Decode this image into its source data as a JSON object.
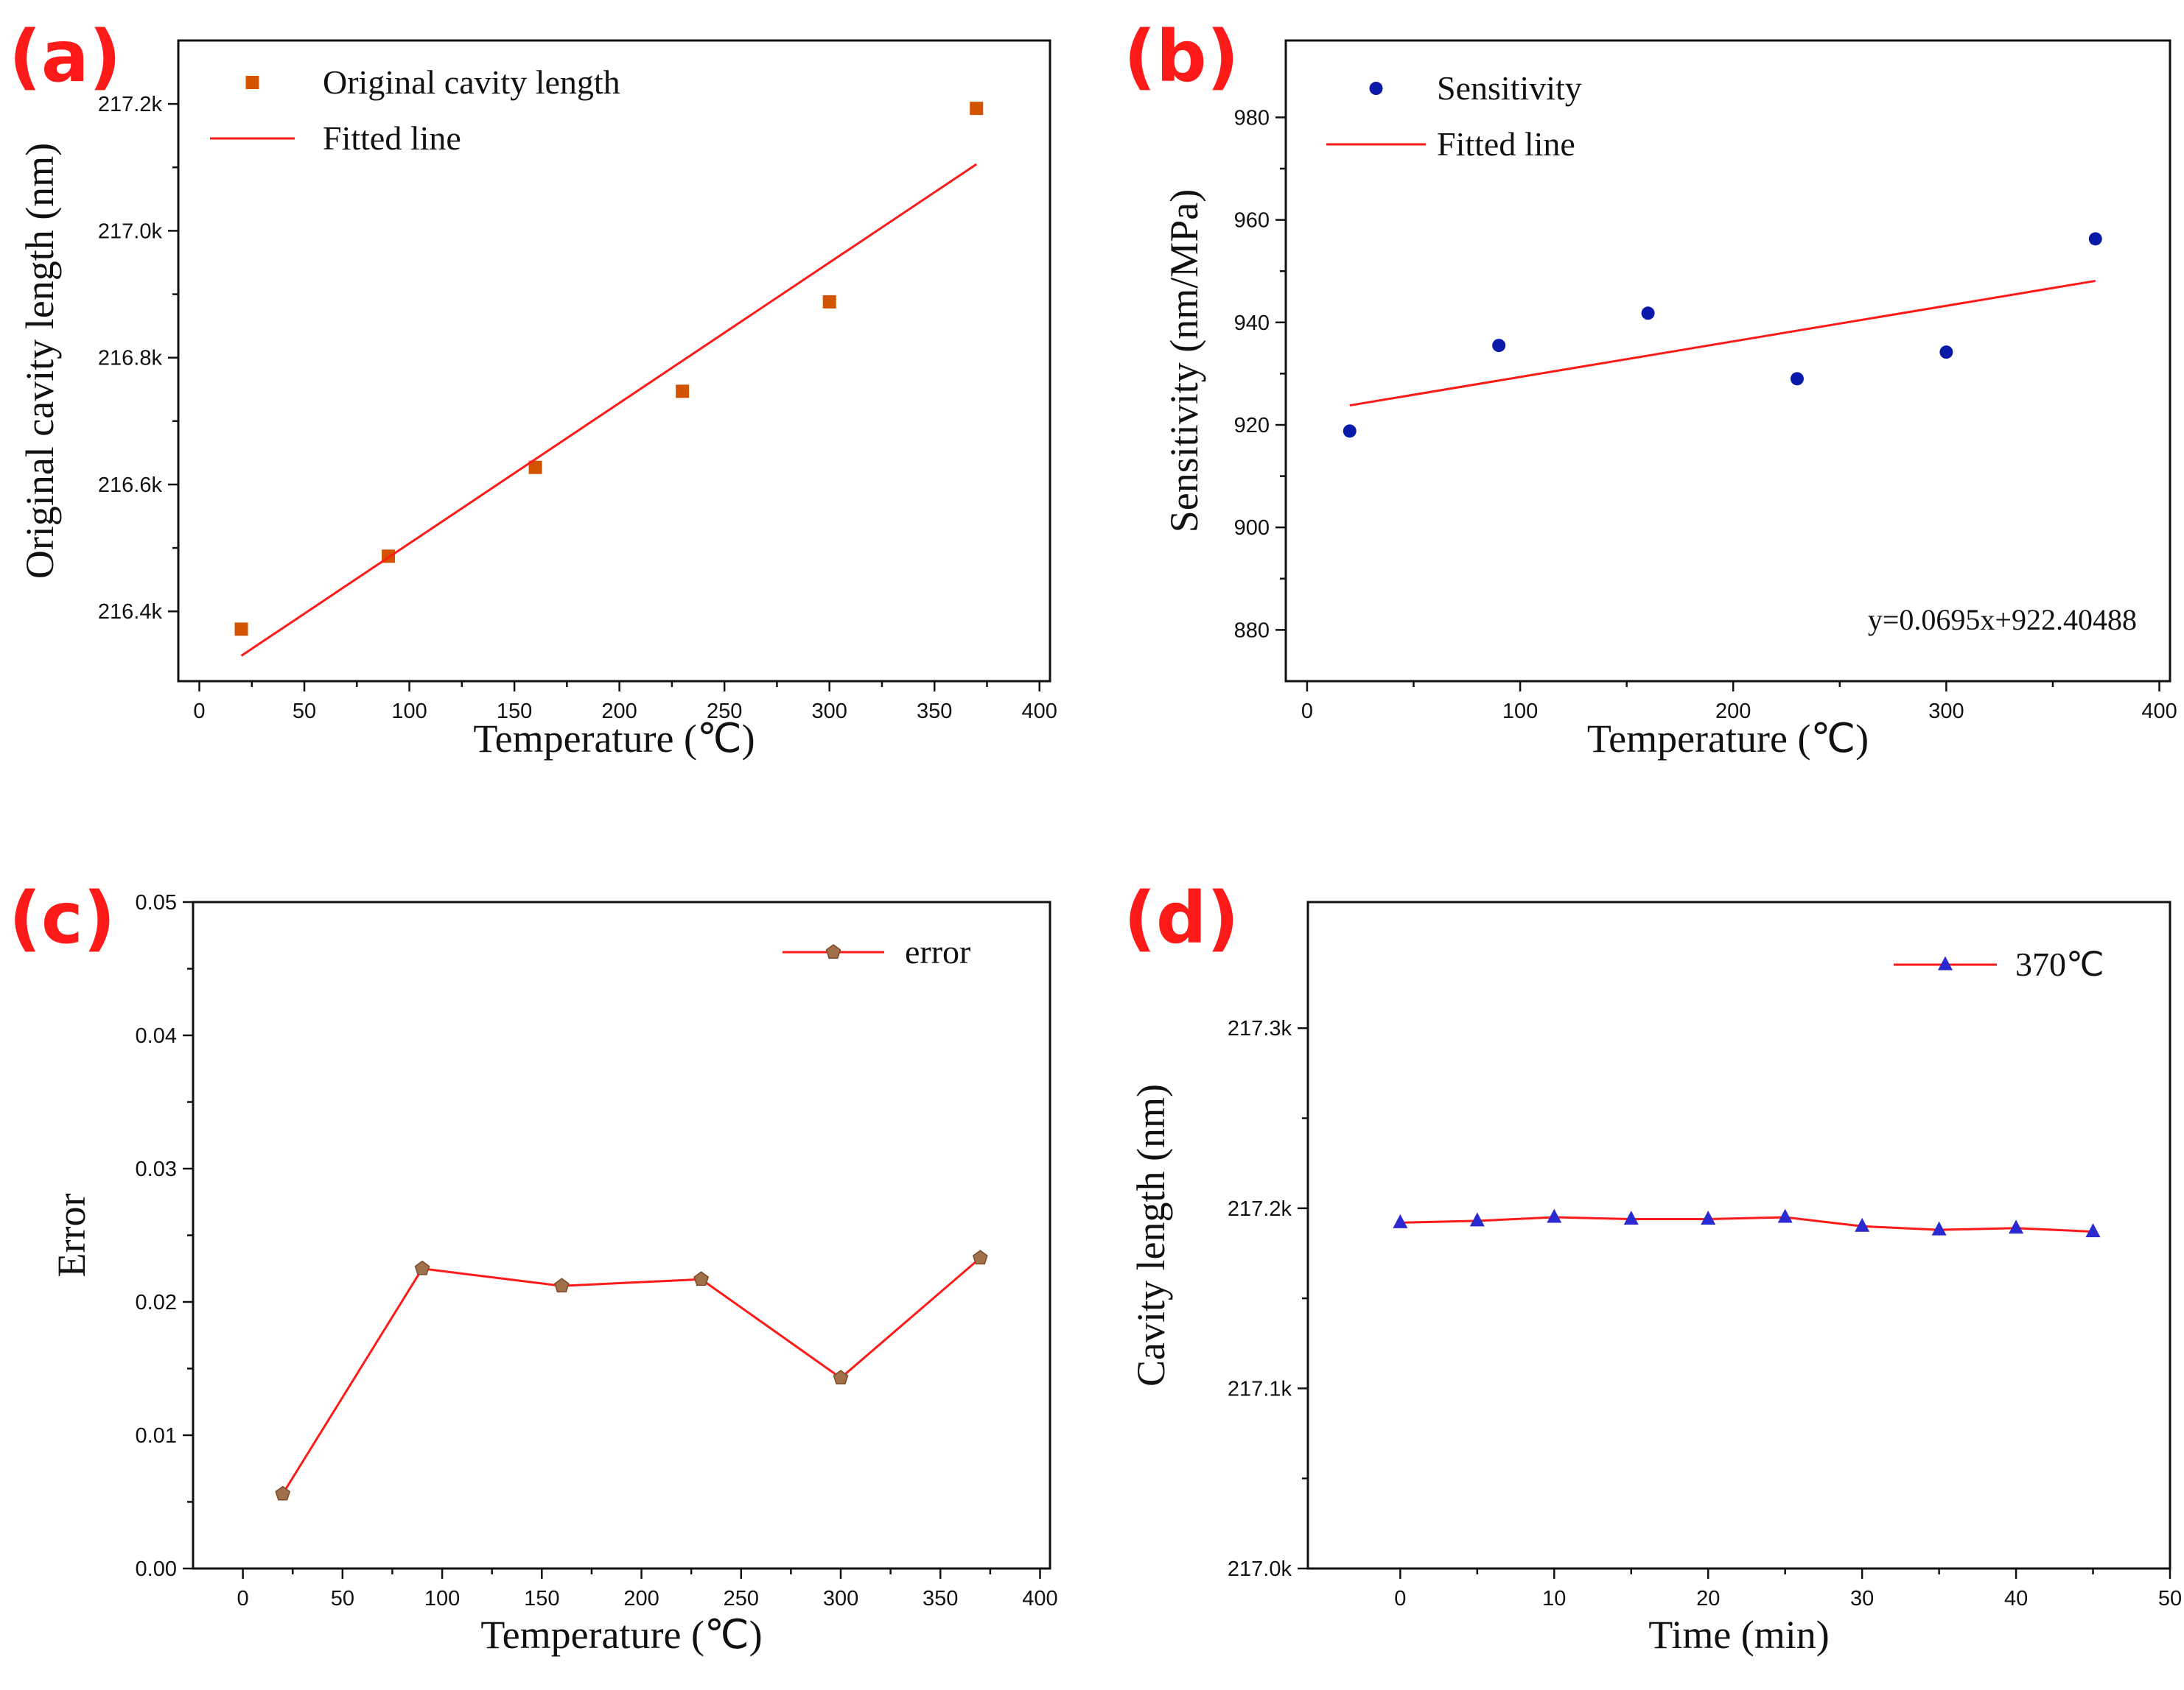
{
  "chart_data": [
    {
      "panel": "(a)",
      "type": "scatter",
      "xlabel": "Temperature (℃)",
      "ylabel": "Original cavity length (nm)",
      "xlim": [
        -10,
        405
      ],
      "ylim": [
        216290,
        217300
      ],
      "x_ticks": [
        0,
        50,
        100,
        150,
        200,
        250,
        300,
        350,
        400
      ],
      "x_tick_labels": [
        "0",
        "50",
        "100",
        "150",
        "200",
        "250",
        "300",
        "350",
        "400"
      ],
      "y_ticks": [
        216400,
        216600,
        216800,
        217000,
        217200
      ],
      "y_tick_labels": [
        "216.4k",
        "216.6k",
        "216.8k",
        "217.0k",
        "217.2k"
      ],
      "grid": false,
      "legend_position": "top-left",
      "series": [
        {
          "name": "Original cavity length",
          "kind": "points",
          "marker": "square",
          "color": "#d35400",
          "x": [
            20,
            90,
            160,
            230,
            300,
            370
          ],
          "y": [
            216372,
            216487,
            216627,
            216747,
            216888,
            217193
          ]
        },
        {
          "name": "Fitted line",
          "kind": "line",
          "color": "#ff1a1a",
          "x": [
            20,
            370
          ],
          "y": [
            216330,
            217105
          ]
        }
      ]
    },
    {
      "panel": "(b)",
      "type": "scatter",
      "xlabel": "Temperature (℃)",
      "ylabel": "Sensitivity (nm/MPa)",
      "xlim": [
        -10,
        405
      ],
      "ylim": [
        870,
        995
      ],
      "x_ticks": [
        0,
        100,
        200,
        300,
        400
      ],
      "x_tick_labels": [
        "0",
        "100",
        "200",
        "300",
        "400"
      ],
      "y_ticks": [
        880,
        900,
        920,
        940,
        960,
        980
      ],
      "y_tick_labels": [
        "880",
        "900",
        "920",
        "940",
        "960",
        "980"
      ],
      "grid": false,
      "legend_position": "top-left",
      "annotation": "y=0.0695x+922.40488",
      "series": [
        {
          "name": "Sensitivity",
          "kind": "points",
          "marker": "circle",
          "color": "#0a1aa8",
          "x": [
            20,
            90,
            160,
            230,
            300,
            370
          ],
          "y": [
            918.8,
            935.5,
            941.8,
            929.0,
            934.2,
            956.3
          ]
        },
        {
          "name": "Fitted line",
          "kind": "line",
          "color": "#ff1a1a",
          "x": [
            20,
            370
          ],
          "y": [
            923.8,
            948.1
          ]
        }
      ]
    },
    {
      "panel": "(c)",
      "type": "line",
      "xlabel": "Temperature (℃)",
      "ylabel": "Error",
      "xlim": [
        -25,
        405
      ],
      "ylim": [
        0,
        0.05
      ],
      "x_ticks": [
        0,
        50,
        100,
        150,
        200,
        250,
        300,
        350,
        400
      ],
      "x_tick_labels": [
        "0",
        "50",
        "100",
        "150",
        "200",
        "250",
        "300",
        "350",
        "400"
      ],
      "y_ticks": [
        0,
        0.01,
        0.02,
        0.03,
        0.04,
        0.05
      ],
      "y_tick_labels": [
        "0.00",
        "0.01",
        "0.02",
        "0.03",
        "0.04",
        "0.05"
      ],
      "grid": false,
      "legend_position": "top-right",
      "series": [
        {
          "name": "error",
          "kind": "line+points",
          "marker": "pentagon",
          "color": "#ff1a1a",
          "marker_color": "#a0704a",
          "x": [
            20,
            90,
            160,
            230,
            300,
            370
          ],
          "y": [
            0.0056,
            0.0225,
            0.0212,
            0.0217,
            0.0143,
            0.0233
          ]
        }
      ]
    },
    {
      "panel": "(d)",
      "type": "line",
      "xlabel": "Time (min)",
      "ylabel": "Cavity length (nm)",
      "xlim": [
        -6,
        50
      ],
      "ylim": [
        217000,
        217370
      ],
      "x_ticks": [
        0,
        10,
        20,
        30,
        40,
        50
      ],
      "x_tick_labels": [
        "0",
        "10",
        "20",
        "30",
        "40",
        "50"
      ],
      "y_ticks": [
        217000,
        217100,
        217200,
        217300
      ],
      "y_tick_labels": [
        "217.0k",
        "217.1k",
        "217.2k",
        "217.3k"
      ],
      "grid": false,
      "legend_position": "top-right",
      "series": [
        {
          "name": "370℃",
          "kind": "line+points",
          "marker": "triangle",
          "color": "#ff1a1a",
          "marker_color": "#2a2ad0",
          "x": [
            0,
            5,
            10,
            15,
            20,
            25,
            30,
            35,
            40,
            45
          ],
          "y": [
            217192,
            217193,
            217195,
            217194,
            217194,
            217195,
            217190,
            217188,
            217189,
            217187
          ]
        }
      ]
    }
  ]
}
